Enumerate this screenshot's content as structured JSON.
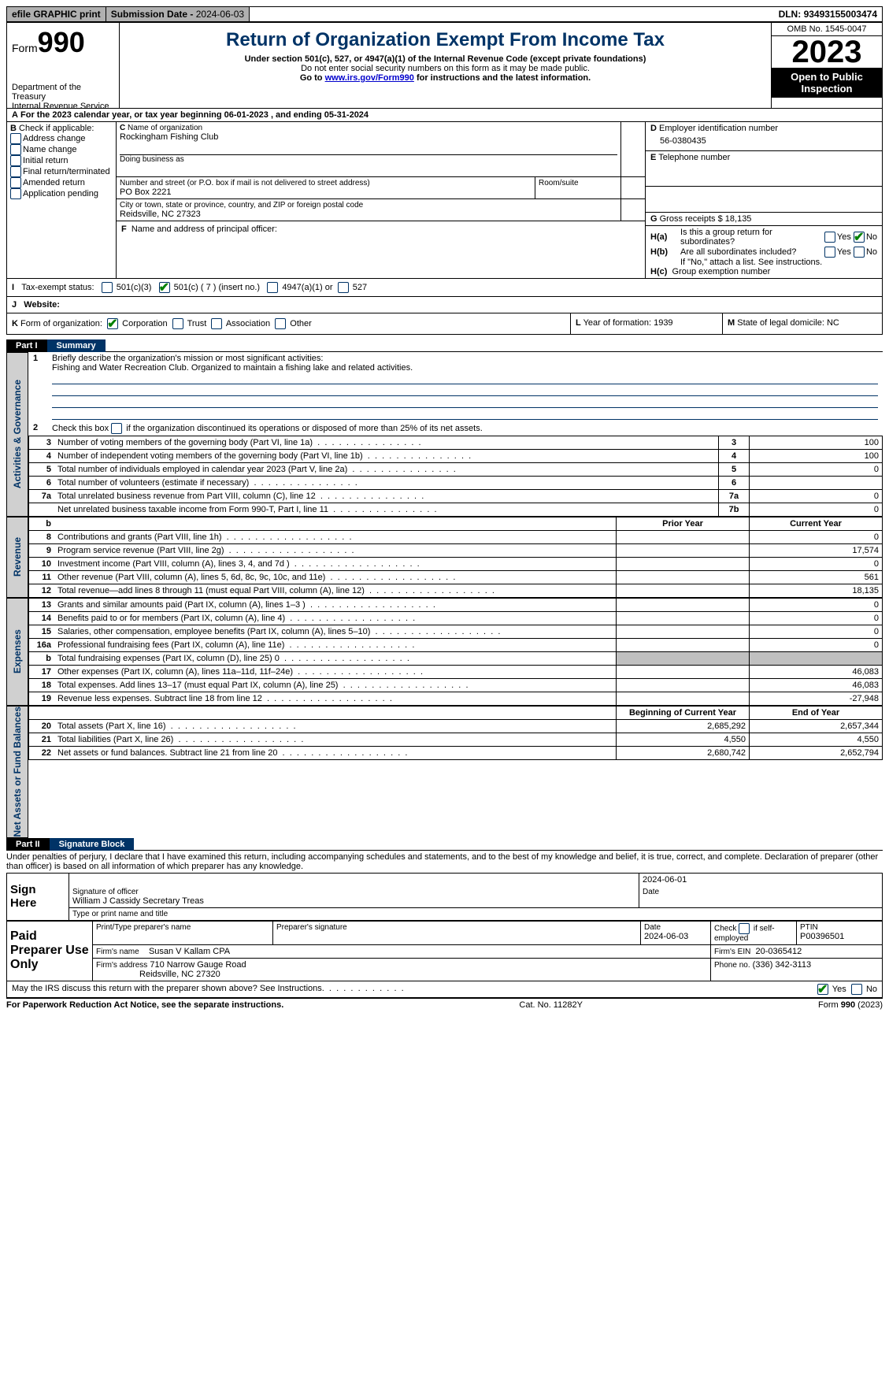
{
  "topbar": {
    "efile": "efile GRAPHIC print",
    "submission_label": "Submission Date - ",
    "submission_date": "2024-06-03",
    "dln_label": "DLN: ",
    "dln": "93493155003474"
  },
  "header": {
    "form_word": "Form",
    "form_number": "990",
    "dept": "Department of the Treasury",
    "irs": "Internal Revenue Service",
    "title": "Return of Organization Exempt From Income Tax",
    "subtitle": "Under section 501(c), 527, or 4947(a)(1) of the Internal Revenue Code (except private foundations)",
    "note1": "Do not enter social security numbers on this form as it may be made public.",
    "note2_pre": "Go to ",
    "note2_link": "www.irs.gov/Form990",
    "note2_post": " for instructions and the latest information.",
    "omb": "OMB No. 1545-0047",
    "year": "2023",
    "open": "Open to Public Inspection"
  },
  "lineA": "For the 2023 calendar year, or tax year beginning 06-01-2023    , and ending 05-31-2024",
  "boxB": {
    "title": "Check if applicable:",
    "items": [
      "Address change",
      "Name change",
      "Initial return",
      "Final return/terminated",
      "Amended return",
      "Application pending"
    ]
  },
  "boxC": {
    "name_label": "Name of organization",
    "name": "Rockingham Fishing Club",
    "dba_label": "Doing business as",
    "street_label": "Number and street (or P.O. box if mail is not delivered to street address)",
    "room_label": "Room/suite",
    "street": "PO Box 2221",
    "city_label": "City or town, state or province, country, and ZIP or foreign postal code",
    "city": "Reidsville, NC  27323"
  },
  "boxD": {
    "label": "Employer identification number",
    "value": "56-0380435"
  },
  "boxE": {
    "label": "Telephone number"
  },
  "boxG": {
    "label": "Gross receipts $",
    "value": "18,135"
  },
  "boxF": {
    "label": "Name and address of principal officer:"
  },
  "boxH": {
    "a": "Is this a group return for subordinates?",
    "b": "Are all subordinates included?",
    "b_note": "If \"No,\" attach a list. See instructions.",
    "c": "Group exemption number",
    "yes": "Yes",
    "no": "No"
  },
  "lineI": {
    "label": "Tax-exempt status:",
    "opt1": "501(c)(3)",
    "opt2": "501(c) ( 7 ) (insert no.)",
    "opt3": "4947(a)(1) or",
    "opt4": "527"
  },
  "lineJ": {
    "label": "Website:"
  },
  "lineK": {
    "label": "Form of organization:",
    "opts": [
      "Corporation",
      "Trust",
      "Association",
      "Other"
    ]
  },
  "lineL": {
    "label": "Year of formation:",
    "value": "1939"
  },
  "lineM": {
    "label": "State of legal domicile:",
    "value": "NC"
  },
  "part1": {
    "tab": "Part I",
    "title": "Summary",
    "q1_label": "Briefly describe the organization's mission or most significant activities:",
    "q1_text": "Fishing and Water Recreation Club. Organized to maintain a fishing lake and related activities.",
    "q2": "Check this box      if the organization discontinued its operations or disposed of more than 25% of its net assets.",
    "vlabels": {
      "ag": "Activities & Governance",
      "rev": "Revenue",
      "exp": "Expenses",
      "na": "Net Assets or Fund Balances"
    },
    "gov_rows": [
      {
        "n": "3",
        "label": "Number of voting members of the governing body (Part VI, line 1a)",
        "key": "3",
        "val": "100"
      },
      {
        "n": "4",
        "label": "Number of independent voting members of the governing body (Part VI, line 1b)",
        "key": "4",
        "val": "100"
      },
      {
        "n": "5",
        "label": "Total number of individuals employed in calendar year 2023 (Part V, line 2a)",
        "key": "5",
        "val": "0"
      },
      {
        "n": "6",
        "label": "Total number of volunteers (estimate if necessary)",
        "key": "6",
        "val": ""
      },
      {
        "n": "7a",
        "label": "Total unrelated business revenue from Part VIII, column (C), line 12",
        "key": "7a",
        "val": "0"
      },
      {
        "n": "",
        "label": "Net unrelated business taxable income from Form 990-T, Part I, line 11",
        "key": "7b",
        "val": "0"
      }
    ],
    "col_prior": "Prior Year",
    "col_current": "Current Year",
    "col_begin": "Beginning of Current Year",
    "col_end": "End of Year",
    "rev_rows": [
      {
        "n": "8",
        "label": "Contributions and grants (Part VIII, line 1h)",
        "prior": "",
        "cur": "0"
      },
      {
        "n": "9",
        "label": "Program service revenue (Part VIII, line 2g)",
        "prior": "",
        "cur": "17,574"
      },
      {
        "n": "10",
        "label": "Investment income (Part VIII, column (A), lines 3, 4, and 7d )",
        "prior": "",
        "cur": "0"
      },
      {
        "n": "11",
        "label": "Other revenue (Part VIII, column (A), lines 5, 6d, 8c, 9c, 10c, and 11e)",
        "prior": "",
        "cur": "561"
      },
      {
        "n": "12",
        "label": "Total revenue—add lines 8 through 11 (must equal Part VIII, column (A), line 12)",
        "prior": "",
        "cur": "18,135"
      }
    ],
    "exp_rows": [
      {
        "n": "13",
        "label": "Grants and similar amounts paid (Part IX, column (A), lines 1–3 )",
        "prior": "",
        "cur": "0"
      },
      {
        "n": "14",
        "label": "Benefits paid to or for members (Part IX, column (A), line 4)",
        "prior": "",
        "cur": "0"
      },
      {
        "n": "15",
        "label": "Salaries, other compensation, employee benefits (Part IX, column (A), lines 5–10)",
        "prior": "",
        "cur": "0"
      },
      {
        "n": "16a",
        "label": "Professional fundraising fees (Part IX, column (A), line 11e)",
        "prior": "",
        "cur": "0"
      },
      {
        "n": "b",
        "label": "Total fundraising expenses (Part IX, column (D), line 25) 0",
        "prior": "GREY",
        "cur": "GREY"
      },
      {
        "n": "17",
        "label": "Other expenses (Part IX, column (A), lines 11a–11d, 11f–24e)",
        "prior": "",
        "cur": "46,083"
      },
      {
        "n": "18",
        "label": "Total expenses. Add lines 13–17 (must equal Part IX, column (A), line 25)",
        "prior": "",
        "cur": "46,083"
      },
      {
        "n": "19",
        "label": "Revenue less expenses. Subtract line 18 from line 12",
        "prior": "",
        "cur": "-27,948"
      }
    ],
    "na_rows": [
      {
        "n": "20",
        "label": "Total assets (Part X, line 16)",
        "prior": "2,685,292",
        "cur": "2,657,344"
      },
      {
        "n": "21",
        "label": "Total liabilities (Part X, line 26)",
        "prior": "4,550",
        "cur": "4,550"
      },
      {
        "n": "22",
        "label": "Net assets or fund balances. Subtract line 21 from line 20",
        "prior": "2,680,742",
        "cur": "2,652,794"
      }
    ]
  },
  "part2": {
    "tab": "Part II",
    "title": "Signature Block",
    "perjury": "Under penalties of perjury, I declare that I have examined this return, including accompanying schedules and statements, and to the best of my knowledge and belief, it is true, correct, and complete. Declaration of preparer (other than officer) is based on all information of which preparer has any knowledge.",
    "sign_here": "Sign Here",
    "sig_date": "2024-06-01",
    "sig_officer_label": "Signature of officer",
    "sig_officer": "William J Cassidy  Secretary Treas",
    "sig_name_label": "Type or print name and title",
    "date_label": "Date",
    "paid": "Paid Preparer Use Only",
    "prep_name_label": "Print/Type preparer's name",
    "prep_sig_label": "Preparer's signature",
    "prep_date_label": "Date",
    "prep_date": "2024-06-03",
    "self_emp": "Check        if self-employed",
    "ptin_label": "PTIN",
    "ptin": "P00396501",
    "firm_name_label": "Firm's name",
    "firm_name": "Susan V Kallam CPA",
    "firm_ein_label": "Firm's EIN",
    "firm_ein": "20-0365412",
    "firm_addr_label": "Firm's address",
    "firm_addr1": "710 Narrow Gauge Road",
    "firm_addr2": "Reidsville, NC  27320",
    "phone_label": "Phone no.",
    "phone": "(336) 342-3113",
    "may_irs": "May the IRS discuss this return with the preparer shown above? See Instructions.",
    "yes": "Yes",
    "no": "No"
  },
  "footer": {
    "left": "For Paperwork Reduction Act Notice, see the separate instructions.",
    "mid": "Cat. No. 11282Y",
    "right_pre": "Form ",
    "right_form": "990",
    "right_post": " (2023)"
  },
  "B_letter": "B",
  "A_letter": "A",
  "C_letter": "C",
  "D_letter": "D",
  "E_letter": "E",
  "F_letter": "F",
  "G_letter": "G",
  "I_letter": "I",
  "J_letter": "J",
  "K_letter": "K",
  "L_letter": "L",
  "M_letter": "M",
  "Ha": "H(a)",
  "Hb": "H(b)",
  "Hc": "H(c)",
  "nums": {
    "one": "1",
    "two": "2",
    "b_small": "b"
  }
}
